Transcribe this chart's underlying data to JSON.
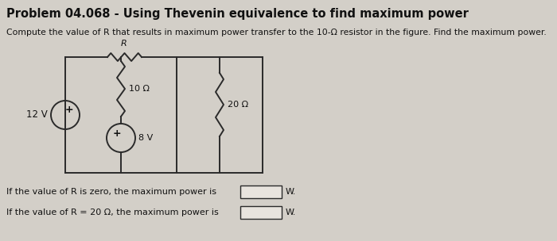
{
  "title": "Problem 04.068 - Using Thevenin equivalence to find maximum power",
  "subtitle": "Compute the value of R that results in maximum power transfer to the 10-Ω resistor in the figure. Find the maximum power.",
  "bg_color": "#d3cfc8",
  "line_color": "#2a2a2a",
  "text_color": "#111111",
  "label_12V": "12 V",
  "label_R": "R",
  "label_10ohm": "10 Ω",
  "label_8V": "8 V",
  "label_20ohm": "20 Ω",
  "question1": "If the value of R is zero, the maximum power is",
  "question2": "If the value of R = 20 Ω, the maximum power is",
  "unit": "W.",
  "fig_w": 7.0,
  "fig_h": 3.04,
  "dpi": 100
}
